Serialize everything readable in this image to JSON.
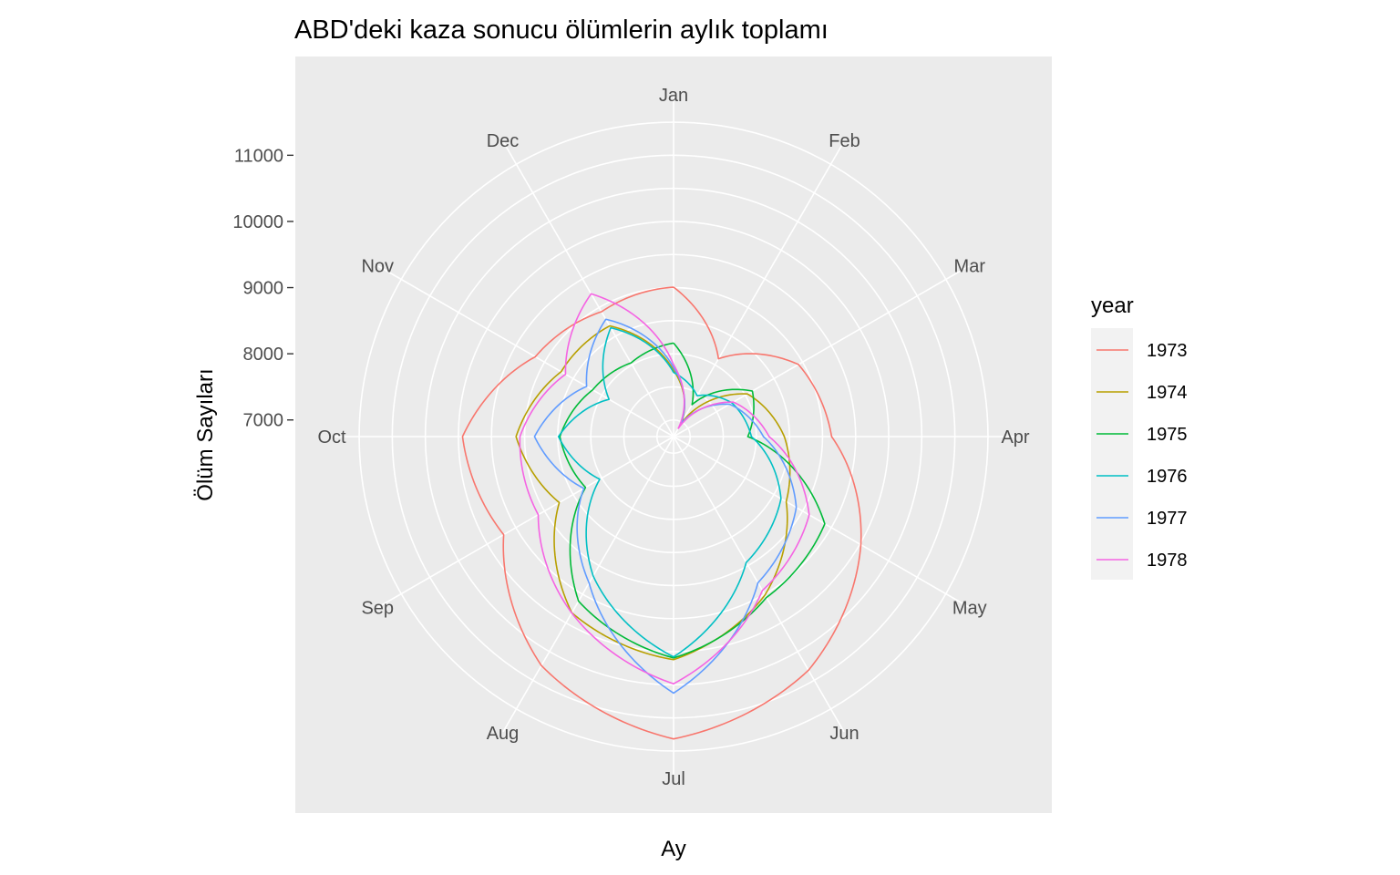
{
  "chart_data": {
    "type": "line",
    "coord": "polar",
    "title": "ABD'deki kaza sonucu ölümlerin aylık toplamı",
    "xlabel": "Ay",
    "ylabel": "Ölüm Sayıları",
    "categories": [
      "Jan",
      "Feb",
      "Mar",
      "Apr",
      "May",
      "Jun",
      "Jul",
      "Aug",
      "Sep",
      "Oct",
      "Nov",
      "Dec"
    ],
    "y_ticks": [
      7000,
      8000,
      9000,
      10000,
      11000
    ],
    "ylim": [
      6900,
      11900
    ],
    "grid": true,
    "legend": {
      "title": "year",
      "position": "right"
    },
    "series": [
      {
        "name": "1973",
        "color": "#F8766D",
        "values": [
          9007,
          8106,
          8928,
          9137,
          10017,
          10826,
          11317,
          10744,
          9713,
          9938,
          9161,
          8927
        ]
      },
      {
        "name": "1974",
        "color": "#B79F00",
        "values": [
          7750,
          6981,
          8038,
          8422,
          8714,
          9512,
          10120,
          9823,
          8743,
          9129,
          8710,
          8680
        ]
      },
      {
        "name": "1975",
        "color": "#00BA38",
        "values": [
          8162,
          7306,
          8124,
          7870,
          9387,
          9556,
          10093,
          9620,
          8285,
          8466,
          8160,
          8034
        ]
      },
      {
        "name": "1976",
        "color": "#00BFC4",
        "values": [
          7717,
          7461,
          7767,
          7925,
          8623,
          8945,
          10078,
          9179,
          8037,
          8488,
          7874,
          8647
        ]
      },
      {
        "name": "1977",
        "color": "#619CFF",
        "values": [
          7792,
          6957,
          7726,
          8106,
          8890,
          9299,
          10625,
          9302,
          8314,
          8850,
          8265,
          8796
        ]
      },
      {
        "name": "1978",
        "color": "#F564E3",
        "values": [
          7836,
          6892,
          7791,
          8192,
          9115,
          9434,
          10484,
          9827,
          9110,
          9070,
          8633,
          9240
        ]
      }
    ]
  }
}
